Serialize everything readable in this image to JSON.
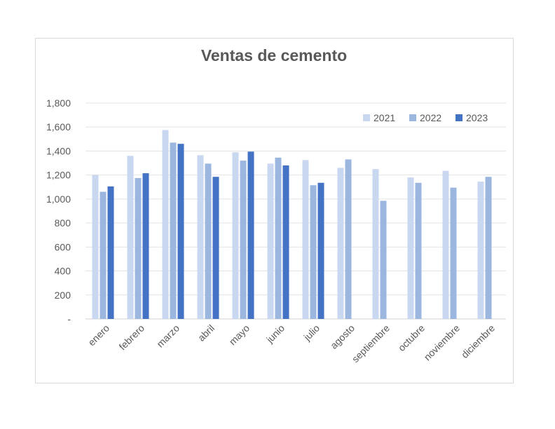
{
  "chart_data": {
    "type": "bar",
    "title": "Ventas de cemento",
    "categories": [
      "enero",
      "febrero",
      "marzo",
      "abril",
      "mayo",
      "junio",
      "julio",
      "agosto",
      "septiembre",
      "octubre",
      "noviembre",
      "diciembre"
    ],
    "series": [
      {
        "name": "2021",
        "color": "#c9d8f0",
        "values": [
          1200,
          1360,
          1575,
          1365,
          1390,
          1295,
          1325,
          1260,
          1250,
          1180,
          1235,
          1145
        ]
      },
      {
        "name": "2022",
        "color": "#9bb7e0",
        "values": [
          1060,
          1175,
          1470,
          1295,
          1320,
          1345,
          1115,
          1330,
          985,
          1135,
          1095,
          1185
        ]
      },
      {
        "name": "2023",
        "color": "#4472c4",
        "values": [
          1105,
          1215,
          1460,
          1185,
          1395,
          1280,
          1135,
          null,
          null,
          null,
          null,
          null
        ]
      }
    ],
    "ylim": [
      0,
      1800
    ],
    "yticks": [
      "-",
      "200",
      "400",
      "600",
      "800",
      "1,000",
      "1,200",
      "1,400",
      "1,600",
      "1,800"
    ],
    "legend_position": "top-right",
    "grid": true
  }
}
